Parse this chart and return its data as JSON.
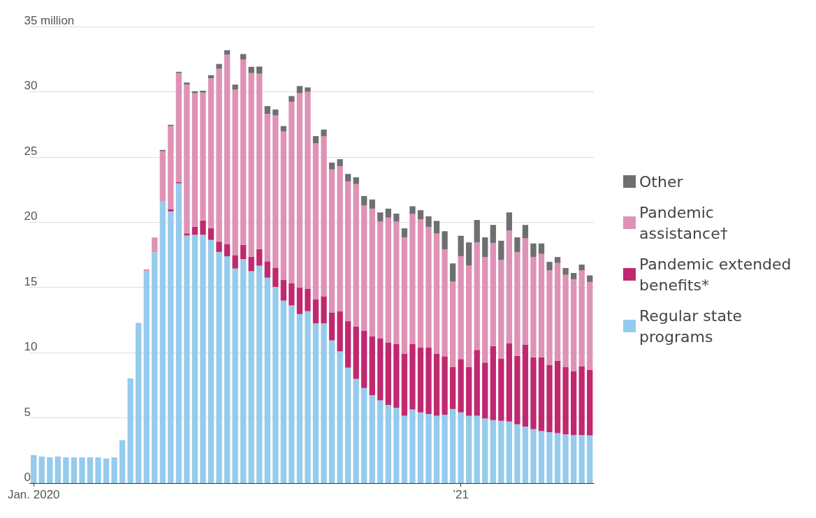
{
  "chart_data": {
    "type": "bar",
    "stacked": true,
    "categories": [
      "Jan. 2020",
      null,
      null,
      null,
      null,
      null,
      null,
      null,
      null,
      null,
      null,
      null,
      null,
      null,
      null,
      null,
      null,
      null,
      null,
      null,
      null,
      null,
      null,
      null,
      null,
      null,
      null,
      null,
      null,
      null,
      null,
      null,
      null,
      null,
      null,
      null,
      null,
      null,
      null,
      null,
      null,
      null,
      null,
      null,
      null,
      null,
      null,
      null,
      null,
      null,
      null,
      null,
      null,
      "’21",
      null,
      null,
      null,
      null,
      null,
      null,
      null,
      null,
      null,
      null,
      null,
      null,
      null,
      null,
      null,
      null
    ],
    "ylim": [
      0,
      35
    ],
    "yticks": [
      0,
      5,
      10,
      15,
      20,
      25,
      30,
      {
        "value": 35,
        "label": "35 million"
      }
    ],
    "grid": "y",
    "legend": "right",
    "series": [
      {
        "name": "Regular state programs",
        "color": "#95cbec",
        "values": [
          2.15,
          2.04,
          1.97,
          2.04,
          1.97,
          1.97,
          1.97,
          1.97,
          1.97,
          1.89,
          1.97,
          3.29,
          8.03,
          12.28,
          16.24,
          17.68,
          21.62,
          20.83,
          22.98,
          18.99,
          19.04,
          19.04,
          18.64,
          17.72,
          17.39,
          16.45,
          17.17,
          16.25,
          16.67,
          15.75,
          15.04,
          13.99,
          13.62,
          12.96,
          13.18,
          12.24,
          12.24,
          10.94,
          10.1,
          8.85,
          7.99,
          7.29,
          6.74,
          6.34,
          5.99,
          5.76,
          5.17,
          5.64,
          5.42,
          5.3,
          5.17,
          5.24,
          5.68,
          5.42,
          5.16,
          5.16,
          4.95,
          4.83,
          4.77,
          4.72,
          4.51,
          4.34,
          4.13,
          3.99,
          3.91,
          3.82,
          3.73,
          3.68,
          3.68,
          3.65
        ]
      },
      {
        "name": "Pandemic extended benefits*",
        "color": "#c0286f",
        "values": [
          0,
          0,
          0,
          0,
          0,
          0,
          0,
          0,
          0,
          0,
          0,
          0,
          0,
          0,
          0,
          0,
          0,
          0.15,
          0.1,
          0.15,
          0.61,
          1.09,
          0.92,
          0.79,
          0.94,
          1.03,
          1.1,
          1.1,
          1.27,
          1.25,
          1.47,
          1.58,
          1.69,
          2.02,
          1.73,
          1.86,
          2.08,
          2.12,
          3.06,
          3.56,
          4.02,
          4.38,
          4.51,
          4.74,
          4.77,
          4.92,
          4.73,
          5.04,
          4.96,
          5.08,
          4.76,
          4.48,
          3.21,
          4.09,
          3.73,
          5.05,
          4.29,
          5.67,
          4.78,
          5.99,
          5.25,
          6.25,
          5.51,
          5.65,
          5.15,
          5.56,
          5.16,
          4.91,
          5.26,
          5.03
        ]
      },
      {
        "name": "Pandemic assistance†",
        "color": "#de92b6",
        "values": [
          0,
          0,
          0,
          0,
          0,
          0,
          0,
          0,
          0,
          0,
          0,
          0,
          0,
          0,
          0.15,
          1.15,
          3.82,
          6.39,
          8.35,
          11.41,
          10.24,
          9.8,
          11.47,
          13.24,
          14.52,
          12.7,
          14.21,
          14.08,
          13.44,
          11.31,
          11.69,
          11.4,
          13.92,
          14.91,
          15.09,
          11.95,
          12.28,
          10.99,
          11.14,
          10.72,
          10.91,
          9.6,
          9.79,
          8.97,
          9.59,
          9.37,
          8.94,
          9.95,
          9.85,
          9.24,
          9.2,
          8.2,
          6.56,
          7.89,
          7.78,
          8.23,
          8.09,
          7.9,
          7.55,
          8.65,
          7.95,
          8.19,
          7.69,
          7.93,
          7.26,
          7.5,
          7.08,
          7.04,
          7.38,
          6.74
        ]
      },
      {
        "name": "Other",
        "color": "#6f6f6f",
        "values": [
          0,
          0,
          0,
          0,
          0,
          0,
          0,
          0,
          0,
          0,
          0,
          0,
          0,
          0,
          0,
          0,
          0.1,
          0.1,
          0.1,
          0.15,
          0.15,
          0.15,
          0.24,
          0.38,
          0.33,
          0.37,
          0.41,
          0.48,
          0.55,
          0.59,
          0.44,
          0.4,
          0.44,
          0.55,
          0.33,
          0.55,
          0.5,
          0.52,
          0.53,
          0.57,
          0.52,
          0.74,
          0.7,
          0.7,
          0.69,
          0.61,
          0.69,
          0.59,
          0.69,
          0.83,
          0.97,
          1.39,
          1.39,
          1.56,
          1.78,
          1.73,
          1.51,
          1.39,
          1.48,
          1.39,
          1.13,
          1.01,
          1.04,
          0.8,
          0.64,
          0.45,
          0.52,
          0.48,
          0.43,
          0.5
        ]
      }
    ]
  }
}
